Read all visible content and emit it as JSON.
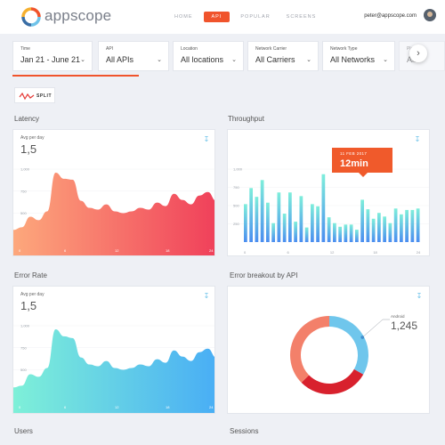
{
  "header": {
    "brand": "appscope",
    "nav": [
      "HOME",
      "API",
      "POPULAR",
      "SCREENS"
    ],
    "active_nav": "API",
    "email": "peter@appscope.com"
  },
  "filters": [
    {
      "label": "Time",
      "value": "Jan 21 - June 21"
    },
    {
      "label": "API",
      "value": "All APIs"
    },
    {
      "label": "Location",
      "value": "All locations"
    },
    {
      "label": "Network Carrier",
      "value": "All Carriers"
    },
    {
      "label": "Network Type",
      "value": "All Networks"
    },
    {
      "label": "Platform",
      "value": "All"
    }
  ],
  "split_label": "SPLIT",
  "sections": {
    "latency": {
      "title": "Latency",
      "caption": "Avg per day",
      "value": "1,5"
    },
    "throughput": {
      "title": "Throughput"
    },
    "error_rate": {
      "title": "Error Rate",
      "caption": "Avg per day",
      "value": "1,5"
    },
    "error_breakout": {
      "title": "Error breakout by API"
    },
    "users": {
      "title": "Users"
    },
    "sessions": {
      "title": "Sessions"
    }
  },
  "tooltip": {
    "date": "11 FEB 2017",
    "value": "12min"
  },
  "donut": {
    "label": "Android",
    "value": "1,245"
  },
  "colors": {
    "accent": "#f0542c",
    "latency_start": "#fda87c",
    "latency_end": "#f0405a",
    "throughput_start": "#7eeedb",
    "throughput_end": "#4a8df0",
    "error_start": "#7ef0d8",
    "error_end": "#49aef5"
  },
  "chart_data": [
    {
      "type": "area",
      "name": "latency",
      "y_ticks": [
        "1,000",
        "750",
        "500",
        "250"
      ],
      "x_ticks": [
        "0",
        "6",
        "12",
        "18",
        "24"
      ],
      "x": [
        0,
        1,
        2,
        3,
        4,
        5,
        6,
        7,
        8,
        9,
        10,
        11,
        12,
        13,
        14,
        15,
        16,
        17,
        18,
        19,
        20,
        21,
        22,
        23,
        24
      ],
      "values": [
        310,
        340,
        460,
        420,
        520,
        960,
        890,
        880,
        640,
        560,
        540,
        600,
        520,
        500,
        520,
        560,
        540,
        620,
        580,
        720,
        650,
        600,
        700,
        740,
        640
      ]
    },
    {
      "type": "bar",
      "name": "throughput",
      "y_ticks": [
        "1,000",
        "750",
        "500",
        "250"
      ],
      "x_ticks": [
        "0",
        "6",
        "12",
        "18",
        "24"
      ],
      "values": [
        520,
        740,
        620,
        850,
        540,
        260,
        680,
        390,
        680,
        280,
        630,
        200,
        520,
        490,
        930,
        340,
        260,
        210,
        240,
        240,
        170,
        580,
        450,
        320,
        400,
        350,
        260,
        460,
        380,
        440,
        440,
        460
      ]
    },
    {
      "type": "area",
      "name": "error_rate",
      "y_ticks": [
        "1,000",
        "750",
        "500",
        "250"
      ],
      "x_ticks": [
        "0",
        "6",
        "12",
        "18",
        "24"
      ],
      "x": [
        0,
        1,
        2,
        3,
        4,
        5,
        6,
        7,
        8,
        9,
        10,
        11,
        12,
        13,
        14,
        15,
        16,
        17,
        18,
        19,
        20,
        21,
        22,
        23,
        24
      ],
      "values": [
        300,
        320,
        450,
        420,
        520,
        960,
        880,
        860,
        640,
        560,
        540,
        600,
        520,
        500,
        520,
        560,
        540,
        620,
        580,
        720,
        650,
        600,
        700,
        740,
        640
      ]
    },
    {
      "type": "pie",
      "name": "error_breakout",
      "slices": [
        {
          "name": "Android",
          "value": 1245,
          "color": "#6fc6ec"
        },
        {
          "name": "red",
          "value": 1100,
          "color": "#d8212d"
        },
        {
          "name": "coral",
          "value": 1400,
          "color": "#f3806a"
        }
      ]
    }
  ]
}
